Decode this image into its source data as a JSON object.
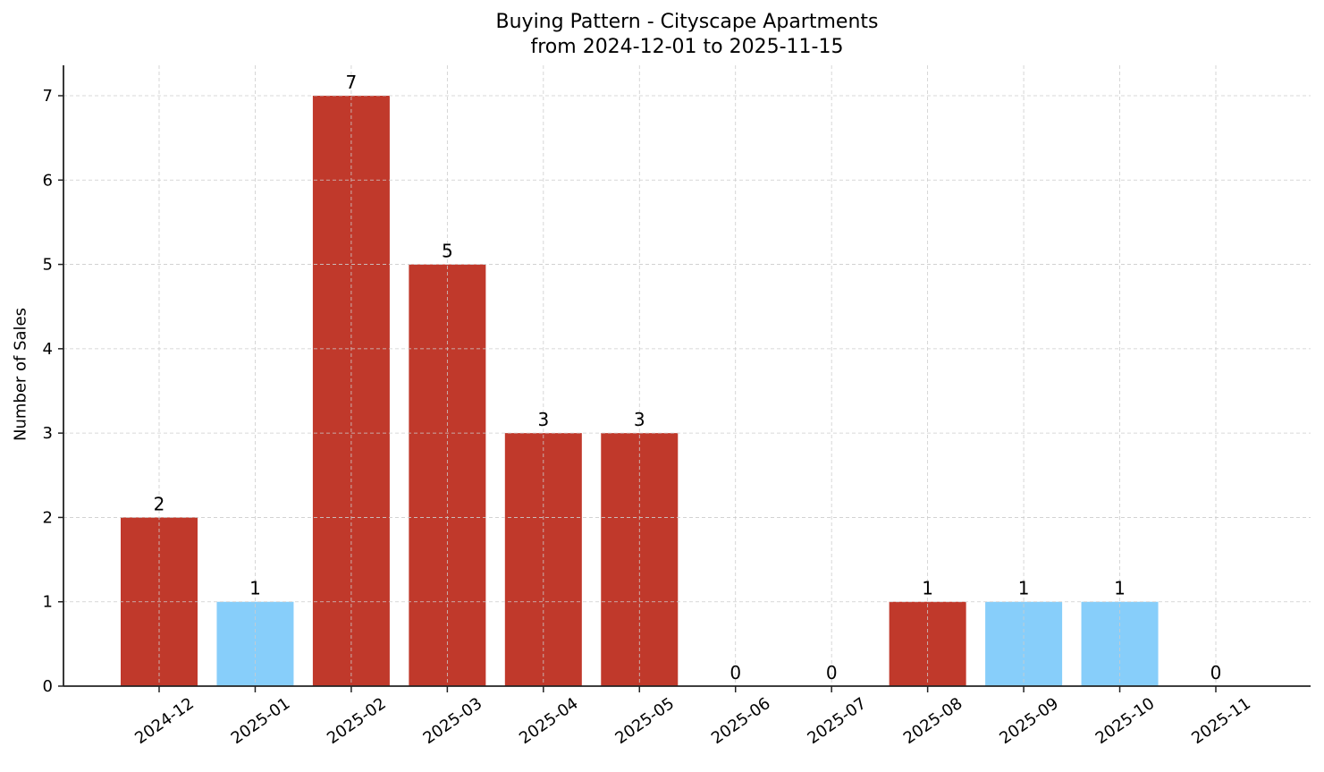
{
  "chart_data": {
    "type": "bar",
    "title": "Buying Pattern - Cityscape Apartments",
    "subtitle": "from 2024-12-01 to 2025-11-15",
    "xlabel": "",
    "ylabel": "Number of Sales",
    "categories": [
      "2024-12",
      "2025-01",
      "2025-02",
      "2025-03",
      "2025-04",
      "2025-05",
      "2025-06",
      "2025-07",
      "2025-08",
      "2025-09",
      "2025-10",
      "2025-11"
    ],
    "values": [
      2,
      1,
      7,
      5,
      3,
      3,
      0,
      0,
      1,
      1,
      1,
      0
    ],
    "bar_colors": [
      "#c0392b",
      "#87cefa",
      "#c0392b",
      "#c0392b",
      "#c0392b",
      "#c0392b",
      "#c0392b",
      "#c0392b",
      "#c0392b",
      "#87cefa",
      "#87cefa",
      "#c0392b"
    ],
    "data_labels": [
      "2",
      "1",
      "7",
      "5",
      "3",
      "3",
      "0",
      "0",
      "1",
      "1",
      "1",
      "0"
    ],
    "yticks": [
      0,
      1,
      2,
      3,
      4,
      5,
      6,
      7
    ],
    "ylim": [
      0,
      7.35
    ],
    "grid": true,
    "legend": null,
    "colors": {
      "high": "#c0392b",
      "low": "#87cefa"
    }
  }
}
